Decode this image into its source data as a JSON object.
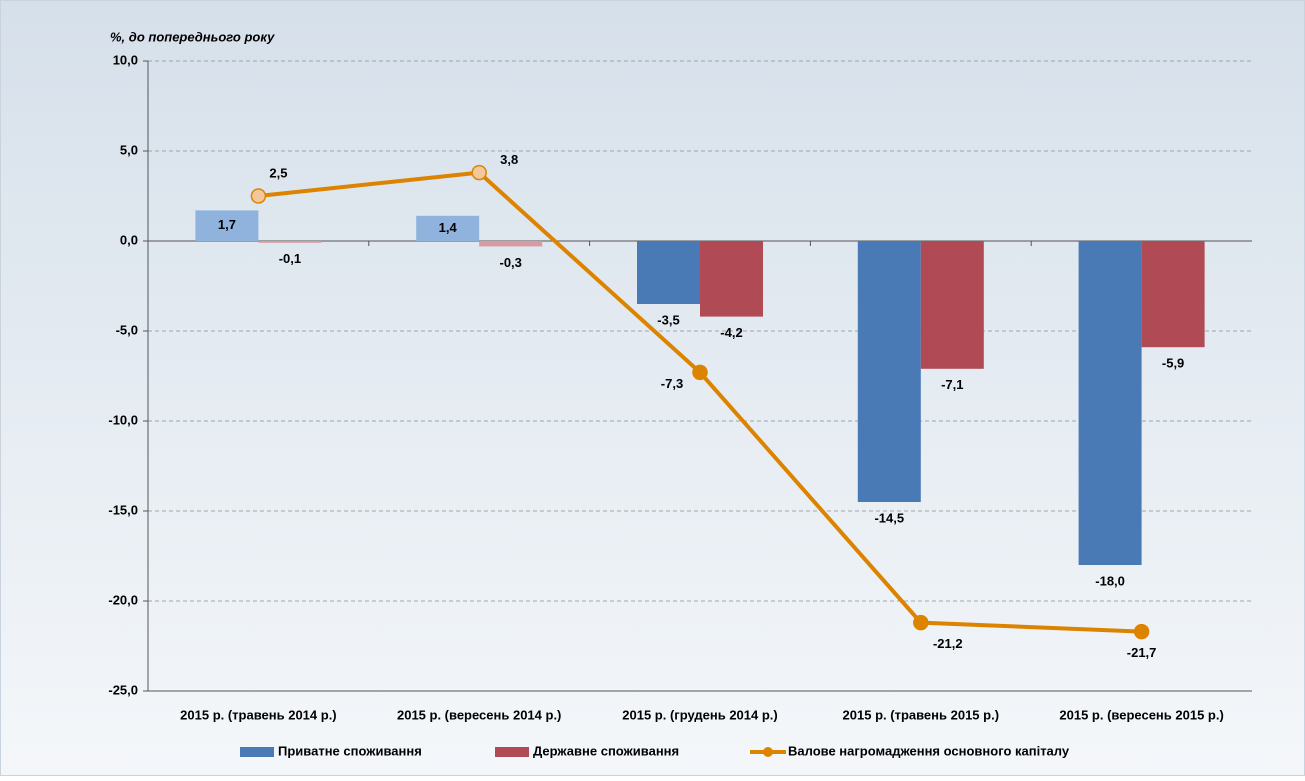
{
  "chart_data": {
    "type": "bar-line",
    "y_label": "%, до попереднього року",
    "categories": [
      "2015 р. (травень 2014 р.)",
      "2015 р. (вересень 2014 р.)",
      "2015 р. (грудень 2014 р.)",
      "2015 р. (травень 2015 р.)",
      "2015 р. (вересень 2015 р.)"
    ],
    "series": [
      {
        "name": "Приватне споживання",
        "type": "bar",
        "color": "#4a7ab5",
        "colors": [
          "#8fb3dd",
          "#8fb3dd",
          "#4a7ab5",
          "#4a7ab5",
          "#4a7ab5"
        ],
        "values": [
          1.7,
          1.4,
          -3.5,
          -14.5,
          -18.0
        ],
        "value_labels": [
          "1,7",
          "1,4",
          "-3,5",
          "-14,5",
          "-18,0"
        ]
      },
      {
        "name": "Державне споживання",
        "type": "bar",
        "color": "#b04a55",
        "colors": [
          "#d99aa1",
          "#d99aa1",
          "#b04a55",
          "#b04a55",
          "#b04a55"
        ],
        "values": [
          -0.1,
          -0.3,
          -4.2,
          -7.1,
          -5.9
        ],
        "value_labels": [
          "-0,1",
          "-0,3",
          "-4,2",
          "-7,1",
          "-5,9"
        ]
      },
      {
        "name": "Валове нагромадження основного капіталу",
        "type": "line",
        "color": "#dc8400",
        "colors": [
          "#f2c79c",
          "#f2c79c",
          "#dc8400",
          "#dc8400",
          "#dc8400"
        ],
        "values": [
          2.5,
          3.8,
          -7.3,
          -21.2,
          -21.7
        ],
        "value_labels": [
          "2,5",
          "3,8",
          "-7,3",
          "-21,2",
          "-21,7"
        ]
      }
    ],
    "ylim": [
      -25,
      10
    ],
    "yticks": [
      {
        "value": -25,
        "label": "-25,0"
      },
      {
        "value": -20,
        "label": "-20,0"
      },
      {
        "value": -15,
        "label": "-15,0"
      },
      {
        "value": -10,
        "label": "-10,0"
      },
      {
        "value": -5,
        "label": "-5,0"
      },
      {
        "value": 0,
        "label": "0,0"
      },
      {
        "value": 5,
        "label": "5,0"
      },
      {
        "value": 10,
        "label": "10,0"
      }
    ],
    "grid": true,
    "legend": "bottom"
  }
}
